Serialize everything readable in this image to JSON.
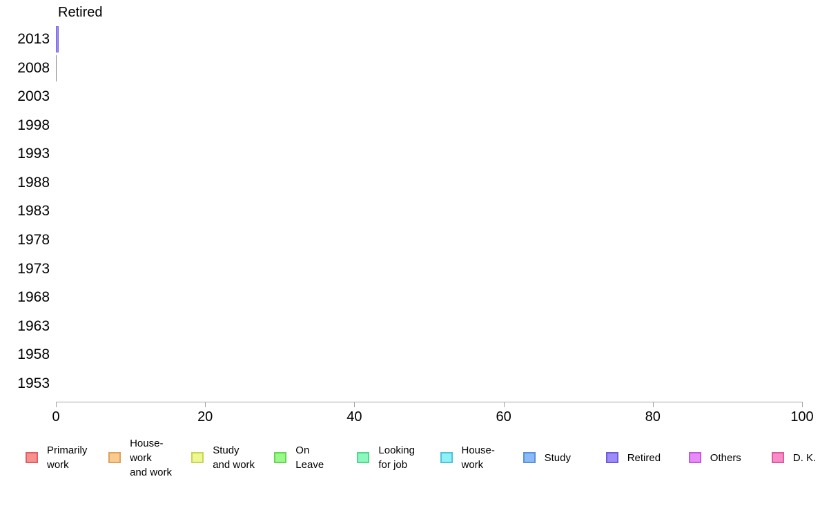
{
  "title": "Retired",
  "y_axis": {
    "labels": [
      "2013",
      "2008",
      "2003",
      "1998",
      "1993",
      "1988",
      "1983",
      "1978",
      "1973",
      "1968",
      "1963",
      "1958",
      "1953"
    ]
  },
  "x_axis": {
    "tick_labels": [
      "0",
      "20",
      "40",
      "60",
      "80",
      "100"
    ]
  },
  "bars": [
    {
      "year": "2013",
      "series": "Retired",
      "value": 0.4,
      "fill": "#9c8bf9",
      "border": "#7668d8"
    },
    {
      "year": "2008",
      "series": "Retired",
      "value": 0.12,
      "fill": "#8a8a8a",
      "border": "#8a8a8a"
    }
  ],
  "legend": {
    "items": [
      {
        "label": "Primarily\nwork",
        "fill": "#f79090",
        "border": "#e06060"
      },
      {
        "label": "House-\nwork\nand work",
        "fill": "#fbcb8e",
        "border": "#dca35c"
      },
      {
        "label": "Study\nand work",
        "fill": "#edf88e",
        "border": "#c8d455"
      },
      {
        "label": "On\nLeave",
        "fill": "#9cf88b",
        "border": "#63d84f"
      },
      {
        "label": "Looking\nfor job",
        "fill": "#8df8be",
        "border": "#4fd88f"
      },
      {
        "label": "House-\nwork",
        "fill": "#8ff1f8",
        "border": "#4fc4d8"
      },
      {
        "label": "Study",
        "fill": "#8bbaf8",
        "border": "#5e8fdc"
      },
      {
        "label": "Retired",
        "fill": "#9c8bf9",
        "border": "#6f5bdc"
      },
      {
        "label": "Others",
        "fill": "#e98bf9",
        "border": "#c25bdc"
      },
      {
        "label": "D. K.",
        "fill": "#f98bc8",
        "border": "#dc5b9b"
      }
    ]
  },
  "chart_data": {
    "type": "bar",
    "orientation": "horizontal",
    "stacked": true,
    "title": "Retired",
    "categories": [
      "2013",
      "2008",
      "2003",
      "1998",
      "1993",
      "1988",
      "1983",
      "1978",
      "1973",
      "1968",
      "1963",
      "1958",
      "1953"
    ],
    "xlim": [
      0,
      100
    ],
    "x_ticks": [
      0,
      20,
      40,
      60,
      80,
      100
    ],
    "grid": false,
    "legend_position": "bottom",
    "series": [
      {
        "name": "Primarily work",
        "values": [
          0,
          0,
          0,
          0,
          0,
          0,
          0,
          0,
          0,
          0,
          0,
          0,
          0
        ]
      },
      {
        "name": "House-work and work",
        "values": [
          0,
          0,
          0,
          0,
          0,
          0,
          0,
          0,
          0,
          0,
          0,
          0,
          0
        ]
      },
      {
        "name": "Study and work",
        "values": [
          0,
          0,
          0,
          0,
          0,
          0,
          0,
          0,
          0,
          0,
          0,
          0,
          0
        ]
      },
      {
        "name": "On Leave",
        "values": [
          0,
          0,
          0,
          0,
          0,
          0,
          0,
          0,
          0,
          0,
          0,
          0,
          0
        ]
      },
      {
        "name": "Looking for job",
        "values": [
          0,
          0,
          0,
          0,
          0,
          0,
          0,
          0,
          0,
          0,
          0,
          0,
          0
        ]
      },
      {
        "name": "House-work",
        "values": [
          0,
          0,
          0,
          0,
          0,
          0,
          0,
          0,
          0,
          0,
          0,
          0,
          0
        ]
      },
      {
        "name": "Study",
        "values": [
          0,
          0,
          0,
          0,
          0,
          0,
          0,
          0,
          0,
          0,
          0,
          0,
          0
        ]
      },
      {
        "name": "Retired",
        "values": [
          0.4,
          0.1,
          0,
          0,
          0,
          0,
          0,
          0,
          0,
          0,
          0,
          0,
          0
        ]
      },
      {
        "name": "Others",
        "values": [
          0,
          0,
          0,
          0,
          0,
          0,
          0,
          0,
          0,
          0,
          0,
          0,
          0
        ]
      },
      {
        "name": "D. K.",
        "values": [
          0,
          0,
          0,
          0,
          0,
          0,
          0,
          0,
          0,
          0,
          0,
          0,
          0
        ]
      }
    ],
    "note": "Chart appears nearly empty: only a ~0.4 sliver at 2013 (Retired, purple) and a hairline at 2008 are drawn."
  }
}
